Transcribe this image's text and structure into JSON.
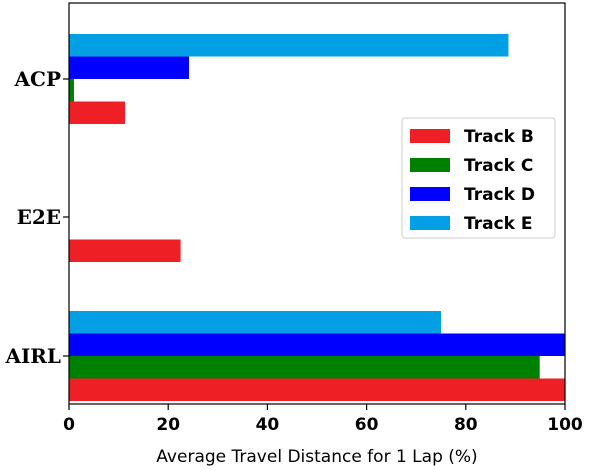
{
  "chart_data": {
    "type": "bar",
    "orientation": "horizontal",
    "categories": [
      "AIRL",
      "E2E",
      "ACP"
    ],
    "series": [
      {
        "name": "Track B",
        "color": "#ee1f25",
        "values": [
          100,
          22.5,
          11.3
        ]
      },
      {
        "name": "Track C",
        "color": "#008000",
        "values": [
          94.9,
          0,
          1.0
        ]
      },
      {
        "name": "Track D",
        "color": "#0000ff",
        "values": [
          100,
          0,
          24.2
        ]
      },
      {
        "name": "Track E",
        "color": "#039fe4",
        "values": [
          75.0,
          0,
          88.6
        ]
      }
    ],
    "xlabel": "Average Travel Distance for 1 Lap (%)",
    "ylabel": "",
    "xlim": [
      0,
      100
    ],
    "xticks": [
      "0",
      "20",
      "40",
      "60",
      "80",
      "100"
    ],
    "grid": false,
    "legend_position": "center-right"
  }
}
